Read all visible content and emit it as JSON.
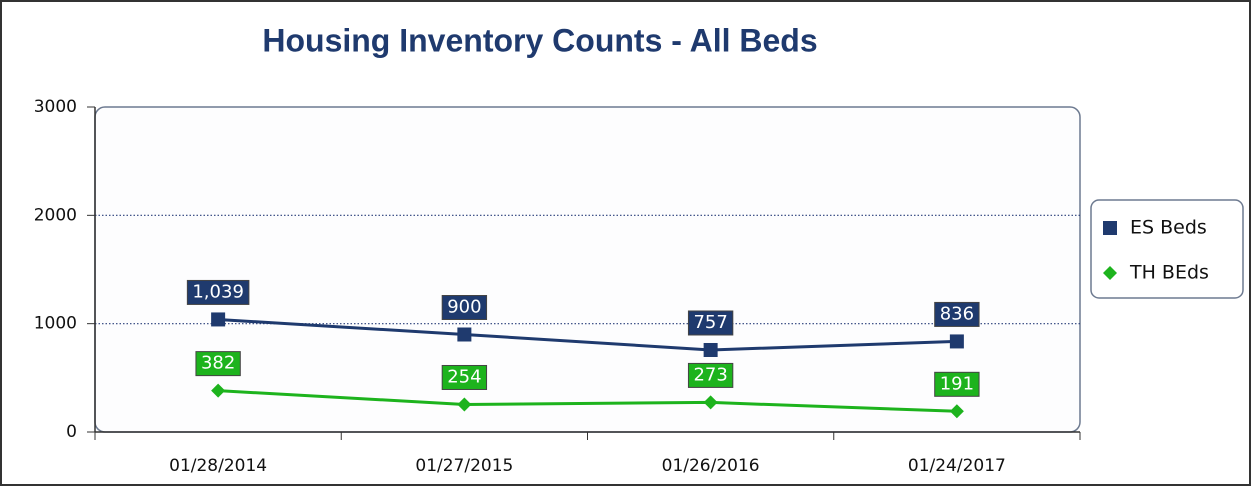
{
  "chart_data": {
    "type": "line",
    "title": "Housing Inventory Counts - All Beds",
    "categories": [
      "01/28/2014",
      "01/27/2015",
      "01/26/2016",
      "01/24/2017"
    ],
    "series": [
      {
        "name": "ES Beds",
        "color": "#1f3a6e",
        "marker": "square",
        "values": [
          1039,
          900,
          757,
          836
        ],
        "value_labels": [
          "1,039",
          "900",
          "757",
          "836"
        ]
      },
      {
        "name": "TH BEds",
        "color": "#1db31d",
        "marker": "diamond",
        "values": [
          382,
          254,
          273,
          191
        ]
      }
    ],
    "ylim": [
      0,
      3000
    ],
    "yticks": [
      0,
      1000,
      2000,
      3000
    ],
    "grid": true,
    "legend": "right"
  }
}
